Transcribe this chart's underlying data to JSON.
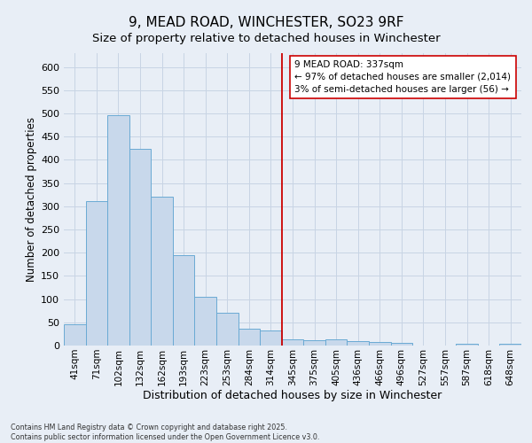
{
  "title": "9, MEAD ROAD, WINCHESTER, SO23 9RF",
  "subtitle": "Size of property relative to detached houses in Winchester",
  "xlabel": "Distribution of detached houses by size in Winchester",
  "ylabel": "Number of detached properties",
  "categories": [
    "41sqm",
    "71sqm",
    "102sqm",
    "132sqm",
    "162sqm",
    "193sqm",
    "223sqm",
    "253sqm",
    "284sqm",
    "314sqm",
    "345sqm",
    "375sqm",
    "405sqm",
    "436sqm",
    "466sqm",
    "496sqm",
    "527sqm",
    "557sqm",
    "587sqm",
    "618sqm",
    "648sqm"
  ],
  "values": [
    45,
    312,
    497,
    423,
    320,
    195,
    105,
    70,
    37,
    32,
    14,
    12,
    14,
    10,
    7,
    5,
    0,
    0,
    4,
    0,
    4
  ],
  "bar_color": "#c8d8eb",
  "bar_edge_color": "#6aaad4",
  "vline_index": 10,
  "annotation_line1": "9 MEAD ROAD: 337sqm",
  "annotation_line2": "← 97% of detached houses are smaller (2,014)",
  "annotation_line3": "3% of semi-detached houses are larger (56) →",
  "annotation_box_color": "#ffffff",
  "annotation_box_edge": "#cc0000",
  "vline_color": "#cc0000",
  "grid_color": "#c8d4e4",
  "background_color": "#e8eef6",
  "footer1": "Contains HM Land Registry data © Crown copyright and database right 2025.",
  "footer2": "Contains public sector information licensed under the Open Government Licence v3.0.",
  "ylim": [
    0,
    630
  ],
  "yticks": [
    0,
    50,
    100,
    150,
    200,
    250,
    300,
    350,
    400,
    450,
    500,
    550,
    600
  ],
  "title_fontsize": 11,
  "subtitle_fontsize": 9.5,
  "ylabel_fontsize": 8.5,
  "xlabel_fontsize": 9,
  "tick_fontsize": 7.5,
  "annotation_fontsize": 7.5,
  "footer_fontsize": 5.8
}
